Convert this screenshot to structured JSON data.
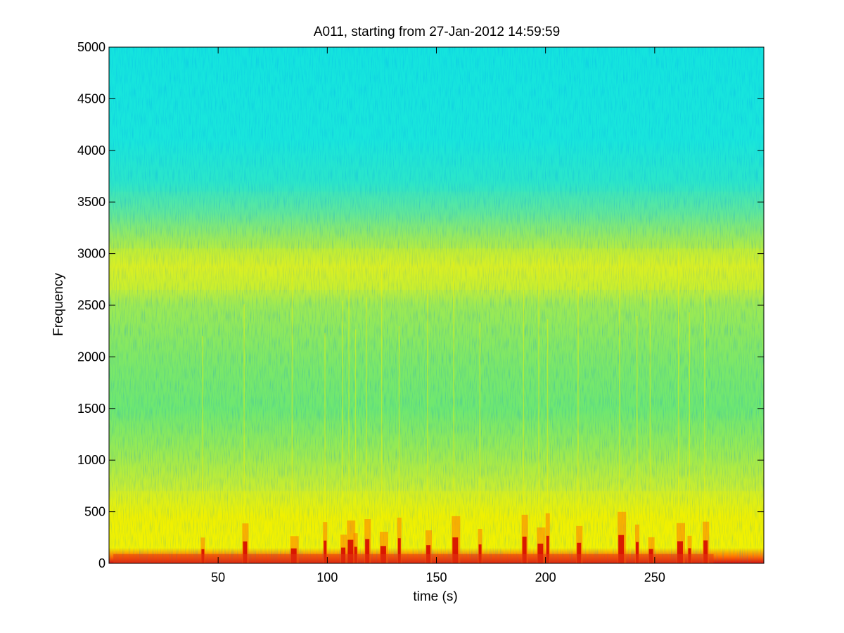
{
  "chart_data": {
    "type": "heatmap",
    "title": "A011, starting from 27-Jan-2012 14:59:59",
    "xlabel": "time (s)",
    "ylabel": "Frequency",
    "xlim": [
      0,
      300
    ],
    "ylim": [
      0,
      5000
    ],
    "x_ticks": [
      50,
      100,
      150,
      200,
      250
    ],
    "y_ticks": [
      0,
      500,
      1000,
      1500,
      2000,
      2500,
      3000,
      3500,
      4000,
      4500,
      5000
    ],
    "x_tick_labels": [
      "50",
      "100",
      "150",
      "200",
      "250"
    ],
    "y_tick_labels": [
      "0",
      "500",
      "1000",
      "1500",
      "2000",
      "2500",
      "3000",
      "3500",
      "4000",
      "4500",
      "5000"
    ],
    "colormap": "jet",
    "grid": false,
    "colors": {
      "high_intensity": "#d40000",
      "mid_intensity": "#f5f500",
      "low_intensity": "#19e6d6"
    },
    "frequency_bands": [
      {
        "from_hz": 0,
        "to_hz": 150,
        "level": "high"
      },
      {
        "from_hz": 150,
        "to_hz": 700,
        "level": "mid-high"
      },
      {
        "from_hz": 700,
        "to_hz": 2500,
        "level": "mid"
      },
      {
        "from_hz": 2650,
        "to_hz": 3050,
        "level": "mid-high"
      },
      {
        "from_hz": 3600,
        "to_hz": 5000,
        "level": "low"
      }
    ],
    "impulse_events_s": [
      43,
      62,
      84,
      99,
      107,
      110,
      113,
      118,
      125,
      133,
      146,
      158,
      170,
      190,
      197,
      201,
      215,
      234,
      242,
      248,
      261,
      266,
      273
    ]
  }
}
